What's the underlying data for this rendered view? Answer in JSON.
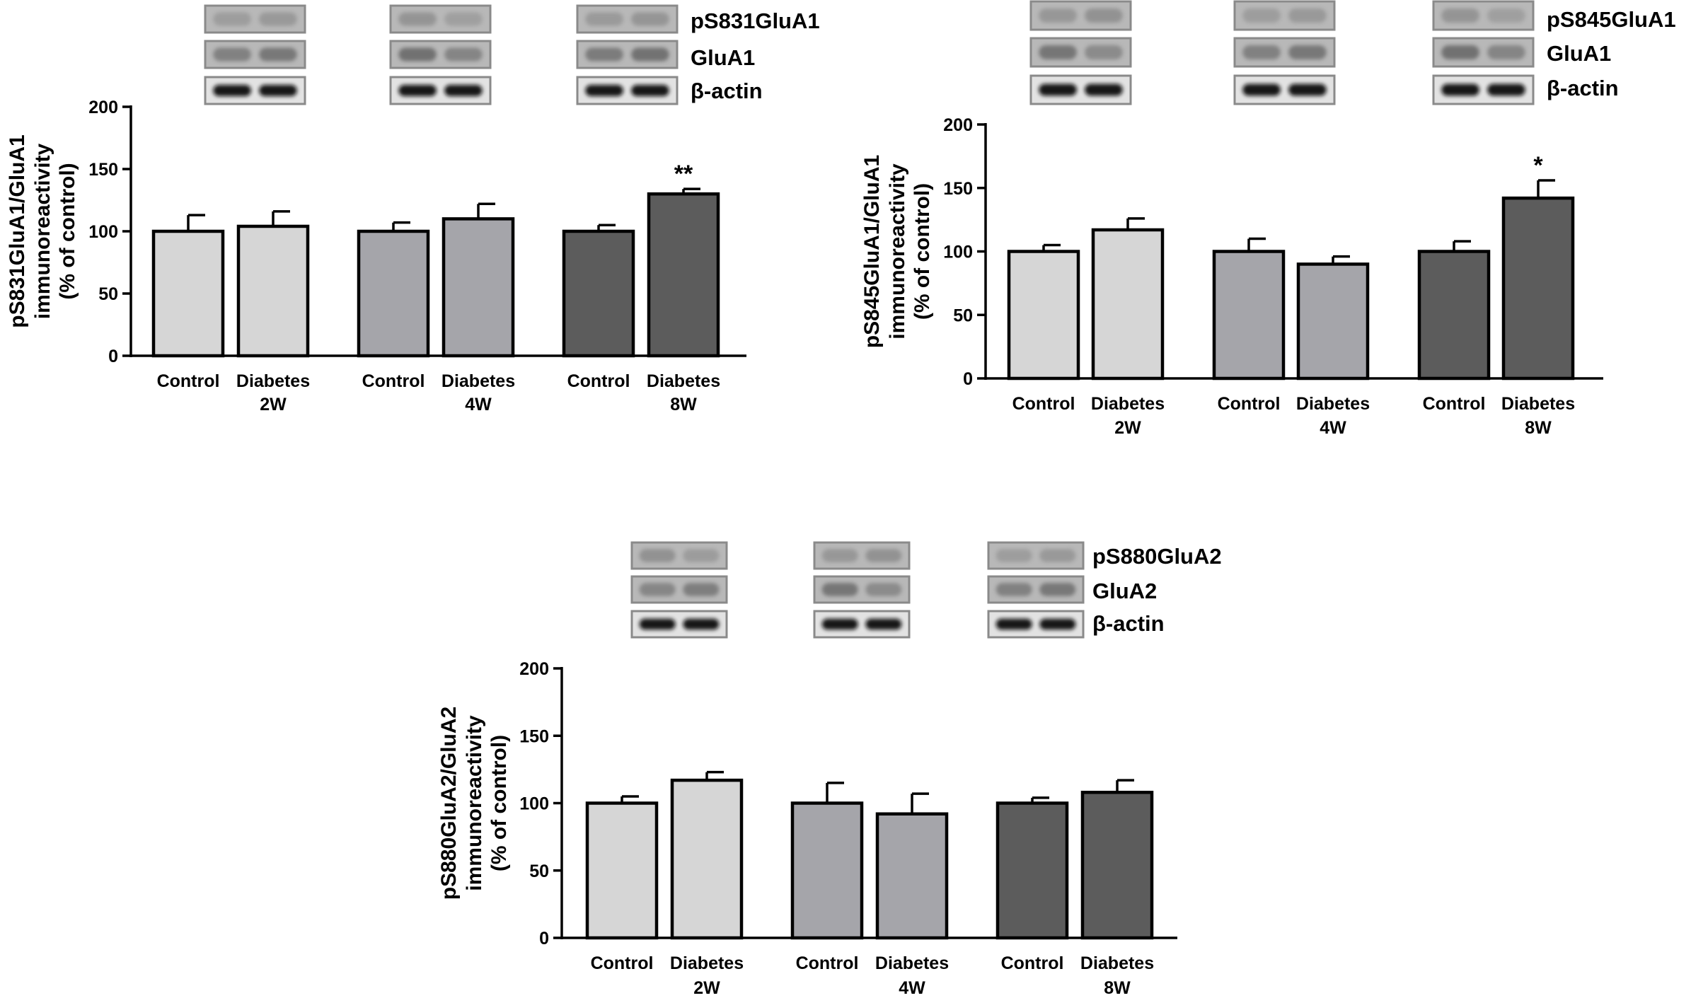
{
  "chart_data": [
    {
      "type": "bar",
      "ylabel_lines": [
        "pS831GluA1/GluA1",
        "immunoreactivity",
        "(% of control)"
      ],
      "ylim": [
        0,
        200
      ],
      "yticks": [
        0,
        50,
        100,
        150,
        200
      ],
      "groups": [
        {
          "label": "2W",
          "categories": [
            "Control",
            "Diabetes"
          ],
          "values": [
            100,
            104
          ],
          "errors": [
            13,
            12
          ],
          "color": "#d6d6d6",
          "significance": [
            "",
            ""
          ]
        },
        {
          "label": "4W",
          "categories": [
            "Control",
            "Diabetes"
          ],
          "values": [
            100,
            110
          ],
          "errors": [
            7,
            12
          ],
          "color": "#a5a5aa",
          "significance": [
            "",
            ""
          ]
        },
        {
          "label": "8W",
          "categories": [
            "Control",
            "Diabetes"
          ],
          "values": [
            100,
            130
          ],
          "errors": [
            5,
            4
          ],
          "color": "#5c5c5c",
          "significance": [
            "",
            "**"
          ]
        }
      ],
      "blot_labels": [
        "pS831GluA1",
        "GluA1",
        "β-actin"
      ]
    },
    {
      "type": "bar",
      "ylabel_lines": [
        "pS845GluA1/GluA1",
        "immunoreactivity",
        "(% of control)"
      ],
      "ylim": [
        0,
        200
      ],
      "yticks": [
        0,
        50,
        100,
        150,
        200
      ],
      "groups": [
        {
          "label": "2W",
          "categories": [
            "Control",
            "Diabetes"
          ],
          "values": [
            100,
            117
          ],
          "errors": [
            5,
            9
          ],
          "color": "#d6d6d6",
          "significance": [
            "",
            ""
          ]
        },
        {
          "label": "4W",
          "categories": [
            "Control",
            "Diabetes"
          ],
          "values": [
            100,
            90
          ],
          "errors": [
            10,
            6
          ],
          "color": "#a5a5aa",
          "significance": [
            "",
            ""
          ]
        },
        {
          "label": "8W",
          "categories": [
            "Control",
            "Diabetes"
          ],
          "values": [
            100,
            142
          ],
          "errors": [
            8,
            14
          ],
          "color": "#5c5c5c",
          "significance": [
            "",
            "*"
          ]
        }
      ],
      "blot_labels": [
        "pS845GluA1",
        "GluA1",
        "β-actin"
      ]
    },
    {
      "type": "bar",
      "ylabel_lines": [
        "pS880GluA2/GluA2",
        "immunoreactivity",
        "(% of control)"
      ],
      "ylim": [
        0,
        200
      ],
      "yticks": [
        0,
        50,
        100,
        150,
        200
      ],
      "groups": [
        {
          "label": "2W",
          "categories": [
            "Control",
            "Diabetes"
          ],
          "values": [
            100,
            117
          ],
          "errors": [
            5,
            6
          ],
          "color": "#d6d6d6",
          "significance": [
            "",
            ""
          ]
        },
        {
          "label": "4W",
          "categories": [
            "Control",
            "Diabetes"
          ],
          "values": [
            100,
            92
          ],
          "errors": [
            15,
            15
          ],
          "color": "#a5a5aa",
          "significance": [
            "",
            ""
          ]
        },
        {
          "label": "8W",
          "categories": [
            "Control",
            "Diabetes"
          ],
          "values": [
            100,
            108
          ],
          "errors": [
            4,
            9
          ],
          "color": "#5c5c5c",
          "significance": [
            "",
            ""
          ]
        }
      ],
      "blot_labels": [
        "pS880GluA2",
        "GluA2",
        "β-actin"
      ]
    }
  ]
}
